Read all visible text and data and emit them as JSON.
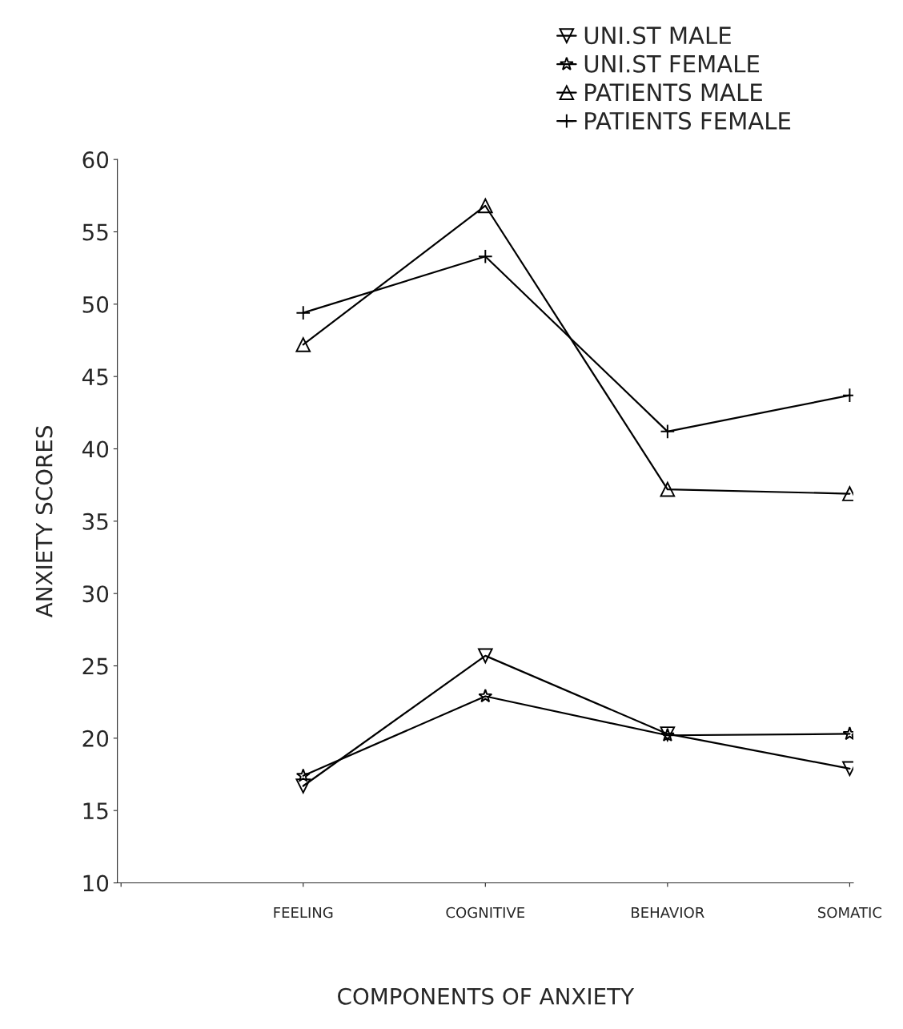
{
  "chart_data": {
    "type": "line",
    "xlabel": "COMPONENTS OF ANXIETY",
    "ylabel": "ANXIETY SCORES",
    "categories": [
      null,
      "FEELING",
      "COGNITIVE",
      "BEHAVIOR",
      "SOMATIC"
    ],
    "ylim": [
      10,
      60
    ],
    "yticks": [
      10,
      15,
      20,
      25,
      30,
      35,
      40,
      45,
      50,
      55,
      60
    ],
    "series": [
      {
        "name": "UNI.ST MALE",
        "color": "#000000",
        "marker": "triangle_down",
        "values": [
          null,
          16.7,
          25.7,
          20.3,
          17.9
        ]
      },
      {
        "name": "UNI.ST FEMALE",
        "color": "#000000",
        "marker": "star",
        "values": [
          null,
          17.4,
          22.9,
          20.2,
          20.3
        ]
      },
      {
        "name": "PATIENTS MALE",
        "color": "#000000",
        "marker": "triangle",
        "values": [
          null,
          47.2,
          56.8,
          37.2,
          36.9
        ]
      },
      {
        "name": "PATIENTS FEMALE",
        "color": "#000000",
        "marker": "cross",
        "values": [
          null,
          49.4,
          53.3,
          41.2,
          43.7
        ]
      }
    ],
    "grid": false,
    "legend": "top right",
    "line_style": "solid"
  }
}
